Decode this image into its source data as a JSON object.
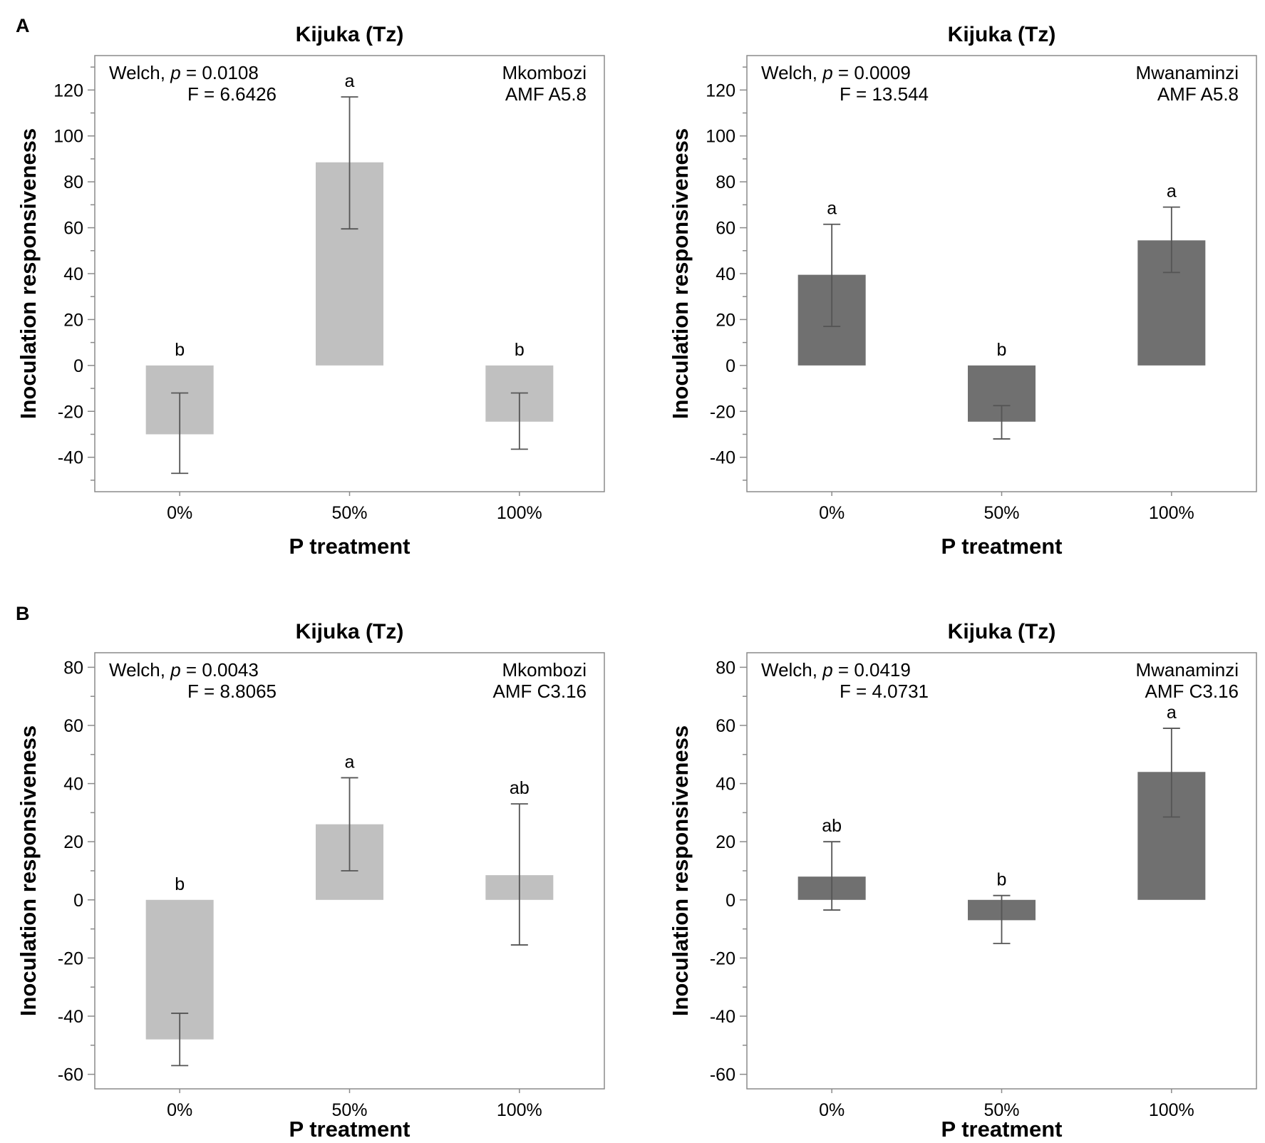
{
  "figure": {
    "panel_letters": [
      "A",
      "B"
    ]
  },
  "chart_data": [
    {
      "type": "bar",
      "panel": "A",
      "title": "Kijuka (Tz)",
      "xlabel": "P treatment",
      "ylabel": "Inoculation responsiveness",
      "categories": [
        "0%",
        "50%",
        "100%"
      ],
      "values": [
        -30,
        88.5,
        -24.5
      ],
      "error_low": [
        -47,
        59.5,
        -36.5
      ],
      "error_high": [
        -12,
        117,
        -12
      ],
      "letters": [
        "b",
        "a",
        "b"
      ],
      "ylim": [
        -55,
        135
      ],
      "yticks": [
        -40,
        -20,
        0,
        20,
        40,
        60,
        80,
        100,
        120
      ],
      "ytick_labels": [
        "-40",
        "-20",
        "0",
        "20",
        "40",
        "60",
        "80",
        "100",
        "120"
      ],
      "stats_line1_prefix": "Welch, ",
      "stats_p_symbol": "p",
      "stats_line1_suffix": " = 0.0108",
      "stats_line2": "F = 6.6426",
      "label_line1": "Mkombozi",
      "label_line2": "AMF A5.8",
      "bar_color": "#c0c0c0"
    },
    {
      "type": "bar",
      "panel": "A",
      "title": "Kijuka (Tz)",
      "xlabel": "P treatment",
      "ylabel": "Inoculation responsiveness",
      "categories": [
        "0%",
        "50%",
        "100%"
      ],
      "values": [
        39.5,
        -24.5,
        54.5
      ],
      "error_low": [
        17,
        -32,
        40.5
      ],
      "error_high": [
        61.5,
        -17.5,
        69
      ],
      "letters": [
        "a",
        "b",
        "a"
      ],
      "ylim": [
        -55,
        135
      ],
      "yticks": [
        -40,
        -20,
        0,
        20,
        40,
        60,
        80,
        100,
        120
      ],
      "ytick_labels": [
        "-40",
        "-20",
        "0",
        "20",
        "40",
        "60",
        "80",
        "100",
        "120"
      ],
      "stats_line1_prefix": "Welch, ",
      "stats_p_symbol": "p",
      "stats_line1_suffix": " = 0.0009",
      "stats_line2": "F = 13.544",
      "label_line1": "Mwanaminzi",
      "label_line2": "AMF A5.8",
      "bar_color": "#707070"
    },
    {
      "type": "bar",
      "panel": "B",
      "title": "Kijuka (Tz)",
      "xlabel": "P treatment",
      "ylabel": "Inoculation responsiveness",
      "categories": [
        "0%",
        "50%",
        "100%"
      ],
      "values": [
        -48,
        26,
        8.5
      ],
      "error_low": [
        -57,
        10,
        -15.5
      ],
      "error_high": [
        -39,
        42,
        33
      ],
      "letters": [
        "b",
        "a",
        "ab"
      ],
      "ylim": [
        -65,
        85
      ],
      "yticks": [
        -60,
        -40,
        -20,
        0,
        20,
        40,
        60,
        80
      ],
      "ytick_labels": [
        "-60",
        "-40",
        "-20",
        "0",
        "20",
        "40",
        "60",
        "80"
      ],
      "stats_line1_prefix": "Welch, ",
      "stats_p_symbol": "p",
      "stats_line1_suffix": " = 0.0043",
      "stats_line2": "F = 8.8065",
      "label_line1": "Mkombozi",
      "label_line2": "AMF C3.16",
      "bar_color": "#c0c0c0"
    },
    {
      "type": "bar",
      "panel": "B",
      "title": "Kijuka (Tz)",
      "xlabel": "P treatment",
      "ylabel": "Inoculation responsiveness",
      "categories": [
        "0%",
        "50%",
        "100%"
      ],
      "values": [
        8,
        -7,
        44
      ],
      "error_low": [
        -3.5,
        -15,
        28.5
      ],
      "error_high": [
        20,
        1.5,
        59
      ],
      "letters": [
        "ab",
        "b",
        "a"
      ],
      "ylim": [
        -65,
        85
      ],
      "yticks": [
        -60,
        -40,
        -20,
        0,
        20,
        40,
        60,
        80
      ],
      "ytick_labels": [
        "-60",
        "-40",
        "-20",
        "0",
        "20",
        "40",
        "60",
        "80"
      ],
      "stats_line1_prefix": "Welch, ",
      "stats_p_symbol": "p",
      "stats_line1_suffix": " = 0.0419",
      "stats_line2": "F = 4.0731",
      "label_line1": "Mwanaminzi",
      "label_line2": "AMF C3.16",
      "bar_color": "#707070"
    }
  ]
}
